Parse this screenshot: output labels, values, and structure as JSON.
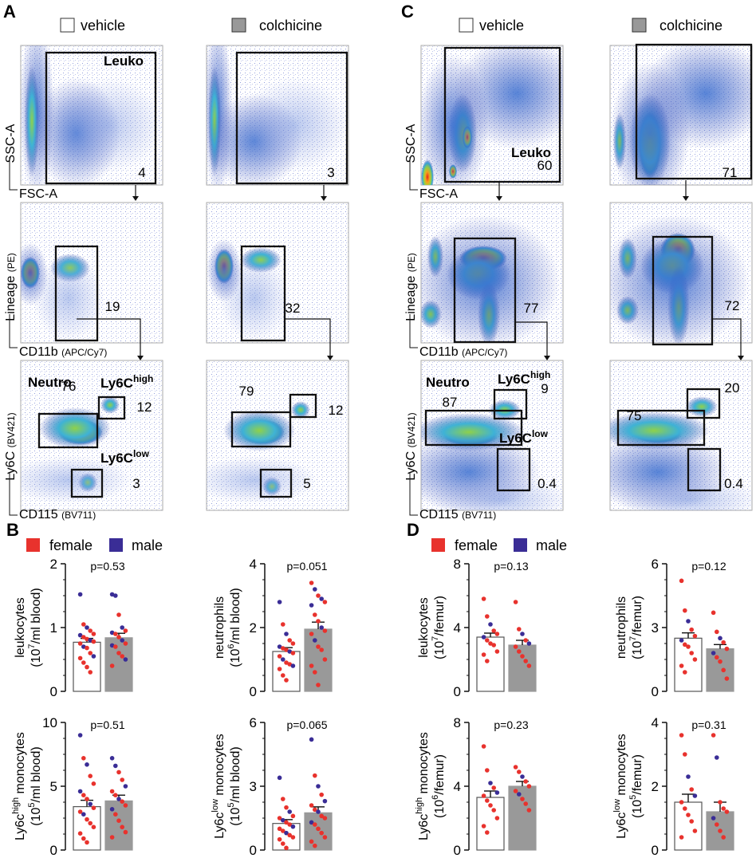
{
  "panels": {
    "A": "A",
    "B": "B",
    "C": "C",
    "D": "D"
  },
  "legend_top": {
    "vehicle": "vehicle",
    "colchicine": "colchicine",
    "colors": {
      "vehicle": "#ffffff",
      "colchicine": "#999999"
    }
  },
  "legend_bottom": {
    "female": "female",
    "male": "male",
    "colors": {
      "female": "#e8322d",
      "male": "#3a2d96"
    }
  },
  "flow": {
    "axes": {
      "ssc": "SSC-A",
      "fsc": "FSC-A",
      "lineage": "Lineage",
      "lineage_sub": "(PE)",
      "cd11b": "CD11b",
      "cd11b_sub": "(APC/Cy7)",
      "ly6c": "Ly6C",
      "ly6c_sub": "(BV421)",
      "cd115": "CD115",
      "cd115_sub": "(BV711)"
    },
    "gates": {
      "leuko": "Leuko",
      "neutro": "Neutro",
      "ly6c_high_base": "Ly6C",
      "high": "high",
      "ly6c_low_base": "Ly6C",
      "low": "low"
    },
    "A_vehicle": {
      "leuko": "4",
      "cd11b": "19",
      "neutro": "76",
      "ly6chigh": "12",
      "ly6clow": "3"
    },
    "A_colchicine": {
      "leuko": "3",
      "cd11b": "32",
      "neutro": "79",
      "ly6chigh": "12",
      "ly6clow": "5"
    },
    "C_vehicle": {
      "leuko": "60",
      "cd11b": "77",
      "neutro": "87",
      "ly6chigh": "9",
      "ly6clow": "0.4"
    },
    "C_colchicine": {
      "leuko": "71",
      "cd11b": "72",
      "neutro": "75",
      "ly6chigh": "20",
      "ly6clow": "0.4"
    }
  },
  "chart_data": [
    {
      "id": "B1",
      "type": "bar",
      "categories": [
        "vehicle",
        "colchicine"
      ],
      "values": [
        0.77,
        0.84
      ],
      "sem": [
        0.06,
        0.07
      ],
      "ylim": [
        0,
        2
      ],
      "yticks": [
        "0",
        "1",
        "2"
      ],
      "ylabel": "leukocytes",
      "ylabel_line2": "(10",
      "ylabel_exp": "7",
      "ylabel_tail": "/ml blood)",
      "p": "p=0.53",
      "points": [
        [
          [
            1.52,
            "m"
          ],
          [
            1.05,
            "r"
          ],
          [
            1.0,
            "m"
          ],
          [
            0.95,
            "r"
          ],
          [
            0.9,
            "r"
          ],
          [
            0.88,
            "m"
          ],
          [
            0.85,
            "r"
          ],
          [
            0.82,
            "r"
          ],
          [
            0.8,
            "m"
          ],
          [
            0.78,
            "r"
          ],
          [
            0.75,
            "r"
          ],
          [
            0.7,
            "m"
          ],
          [
            0.68,
            "r"
          ],
          [
            0.6,
            "r"
          ],
          [
            0.55,
            "m"
          ],
          [
            0.52,
            "r"
          ],
          [
            0.45,
            "r"
          ],
          [
            0.38,
            "r"
          ],
          [
            0.3,
            "r"
          ]
        ],
        [
          [
            1.52,
            "m"
          ],
          [
            1.5,
            "m"
          ],
          [
            1.2,
            "r"
          ],
          [
            1.0,
            "m"
          ],
          [
            0.95,
            "r"
          ],
          [
            0.92,
            "m"
          ],
          [
            0.9,
            "r"
          ],
          [
            0.85,
            "r"
          ],
          [
            0.8,
            "m"
          ],
          [
            0.75,
            "r"
          ],
          [
            0.72,
            "m"
          ],
          [
            0.7,
            "r"
          ],
          [
            0.6,
            "r"
          ],
          [
            0.55,
            "r"
          ],
          [
            0.5,
            "m"
          ],
          [
            0.4,
            "r"
          ]
        ]
      ]
    },
    {
      "id": "B2",
      "type": "bar",
      "categories": [
        "vehicle",
        "colchicine"
      ],
      "values": [
        1.25,
        1.95
      ],
      "sem": [
        0.12,
        0.22
      ],
      "ylim": [
        0,
        4
      ],
      "yticks": [
        "0",
        "2",
        "4"
      ],
      "ylabel": "neutrophils",
      "ylabel_line2": "(10",
      "ylabel_exp": "6",
      "ylabel_tail": "/ml blood)",
      "p": "p=0.051",
      "points": [
        [
          [
            2.8,
            "m"
          ],
          [
            2.1,
            "r"
          ],
          [
            1.8,
            "m"
          ],
          [
            1.6,
            "r"
          ],
          [
            1.5,
            "r"
          ],
          [
            1.4,
            "m"
          ],
          [
            1.35,
            "r"
          ],
          [
            1.3,
            "r"
          ],
          [
            1.25,
            "m"
          ],
          [
            1.2,
            "r"
          ],
          [
            1.1,
            "r"
          ],
          [
            1.0,
            "m"
          ],
          [
            0.9,
            "r"
          ],
          [
            0.85,
            "r"
          ],
          [
            0.8,
            "m"
          ],
          [
            0.7,
            "r"
          ],
          [
            0.5,
            "r"
          ],
          [
            0.35,
            "r"
          ]
        ],
        [
          [
            3.4,
            "r"
          ],
          [
            3.2,
            "m"
          ],
          [
            3.0,
            "r"
          ],
          [
            2.9,
            "m"
          ],
          [
            2.8,
            "r"
          ],
          [
            2.7,
            "m"
          ],
          [
            2.4,
            "r"
          ],
          [
            2.2,
            "r"
          ],
          [
            2.0,
            "m"
          ],
          [
            1.9,
            "r"
          ],
          [
            1.8,
            "r"
          ],
          [
            1.6,
            "m"
          ],
          [
            1.4,
            "r"
          ],
          [
            1.3,
            "r"
          ],
          [
            1.0,
            "r"
          ],
          [
            0.8,
            "r"
          ],
          [
            0.6,
            "r"
          ],
          [
            0.2,
            "r"
          ]
        ]
      ]
    },
    {
      "id": "B3",
      "type": "bar",
      "categories": [
        "vehicle",
        "colchicine"
      ],
      "values": [
        3.4,
        3.85
      ],
      "sem": [
        0.5,
        0.45
      ],
      "ylim": [
        0,
        10
      ],
      "yticks": [
        "0",
        "5",
        "10"
      ],
      "ylabel": "Ly6c",
      "ylabel_sup": "high",
      "ylabel_after": " monocytes",
      "ylabel_line2": "(10",
      "ylabel_exp": "5",
      "ylabel_tail": "/ml blood)",
      "p": "p=0.51",
      "points": [
        [
          [
            9.0,
            "m"
          ],
          [
            7.2,
            "r"
          ],
          [
            6.7,
            "m"
          ],
          [
            5.8,
            "r"
          ],
          [
            5.2,
            "r"
          ],
          [
            4.6,
            "m"
          ],
          [
            4.3,
            "r"
          ],
          [
            4.0,
            "r"
          ],
          [
            3.6,
            "m"
          ],
          [
            3.3,
            "r"
          ],
          [
            3.0,
            "r"
          ],
          [
            2.8,
            "m"
          ],
          [
            2.4,
            "r"
          ],
          [
            2.1,
            "r"
          ],
          [
            1.8,
            "r"
          ],
          [
            1.3,
            "r"
          ],
          [
            0.9,
            "r"
          ],
          [
            0.6,
            "r"
          ]
        ],
        [
          [
            7.2,
            "m"
          ],
          [
            6.6,
            "m"
          ],
          [
            6.1,
            "r"
          ],
          [
            5.5,
            "r"
          ],
          [
            5.0,
            "m"
          ],
          [
            4.6,
            "r"
          ],
          [
            4.3,
            "r"
          ],
          [
            4.0,
            "m"
          ],
          [
            3.8,
            "r"
          ],
          [
            3.5,
            "r"
          ],
          [
            3.2,
            "m"
          ],
          [
            2.8,
            "r"
          ],
          [
            2.3,
            "r"
          ],
          [
            1.8,
            "r"
          ],
          [
            1.4,
            "r"
          ],
          [
            1.0,
            "r"
          ]
        ]
      ]
    },
    {
      "id": "B4",
      "type": "bar",
      "categories": [
        "vehicle",
        "colchicine"
      ],
      "values": [
        1.25,
        1.75
      ],
      "sem": [
        0.18,
        0.28
      ],
      "ylim": [
        0,
        6
      ],
      "yticks": [
        "0",
        "3",
        "6"
      ],
      "ylabel": "Ly6c",
      "ylabel_sup": "low",
      "ylabel_after": " monocytes",
      "ylabel_line2": "(10",
      "ylabel_exp": "5",
      "ylabel_tail": "/ml blood)",
      "p": "p=0.065",
      "points": [
        [
          [
            3.4,
            "m"
          ],
          [
            2.4,
            "r"
          ],
          [
            2.0,
            "r"
          ],
          [
            1.8,
            "m"
          ],
          [
            1.6,
            "r"
          ],
          [
            1.5,
            "r"
          ],
          [
            1.4,
            "m"
          ],
          [
            1.3,
            "r"
          ],
          [
            1.2,
            "r"
          ],
          [
            1.1,
            "m"
          ],
          [
            1.0,
            "r"
          ],
          [
            0.9,
            "r"
          ],
          [
            0.8,
            "m"
          ],
          [
            0.7,
            "r"
          ],
          [
            0.6,
            "r"
          ],
          [
            0.5,
            "r"
          ],
          [
            0.3,
            "r"
          ],
          [
            0.1,
            "r"
          ]
        ],
        [
          [
            5.2,
            "m"
          ],
          [
            3.5,
            "r"
          ],
          [
            3.0,
            "m"
          ],
          [
            2.6,
            "r"
          ],
          [
            2.3,
            "m"
          ],
          [
            2.1,
            "r"
          ],
          [
            1.9,
            "r"
          ],
          [
            1.8,
            "m"
          ],
          [
            1.6,
            "r"
          ],
          [
            1.5,
            "r"
          ],
          [
            1.3,
            "m"
          ],
          [
            1.2,
            "r"
          ],
          [
            1.0,
            "r"
          ],
          [
            0.8,
            "r"
          ],
          [
            0.6,
            "r"
          ],
          [
            0.4,
            "r"
          ],
          [
            0.2,
            "r"
          ]
        ]
      ]
    },
    {
      "id": "D1",
      "type": "bar",
      "categories": [
        "vehicle",
        "colchicine"
      ],
      "values": [
        3.4,
        2.9
      ],
      "sem": [
        0.25,
        0.3
      ],
      "ylim": [
        0,
        8
      ],
      "yticks": [
        "0",
        "4",
        "8"
      ],
      "ylabel": "leukocytes",
      "ylabel_line2": "(10",
      "ylabel_exp": "7",
      "ylabel_tail": "/femur)",
      "p": "p=0.13",
      "points": [
        [
          [
            5.8,
            "r"
          ],
          [
            4.7,
            "r"
          ],
          [
            4.2,
            "m"
          ],
          [
            3.8,
            "r"
          ],
          [
            3.6,
            "r"
          ],
          [
            3.4,
            "m"
          ],
          [
            3.2,
            "r"
          ],
          [
            3.0,
            "r"
          ],
          [
            2.9,
            "r"
          ],
          [
            2.5,
            "r"
          ],
          [
            2.3,
            "r"
          ],
          [
            1.9,
            "r"
          ]
        ],
        [
          [
            5.6,
            "r"
          ],
          [
            3.9,
            "r"
          ],
          [
            3.6,
            "m"
          ],
          [
            3.2,
            "r"
          ],
          [
            3.0,
            "m"
          ],
          [
            2.8,
            "r"
          ],
          [
            2.5,
            "r"
          ],
          [
            2.2,
            "r"
          ],
          [
            1.9,
            "r"
          ],
          [
            1.6,
            "r"
          ]
        ]
      ]
    },
    {
      "id": "D2",
      "type": "bar",
      "categories": [
        "vehicle",
        "colchicine"
      ],
      "values": [
        2.5,
        2.0
      ],
      "sem": [
        0.25,
        0.2
      ],
      "ylim": [
        0,
        6
      ],
      "yticks": [
        "0",
        "3",
        "6"
      ],
      "ylabel": "neutrophils",
      "ylabel_line2": "(10",
      "ylabel_exp": "7",
      "ylabel_tail": "/femur)",
      "p": "p=0.12",
      "points": [
        [
          [
            5.2,
            "r"
          ],
          [
            3.8,
            "r"
          ],
          [
            3.3,
            "m"
          ],
          [
            2.9,
            "r"
          ],
          [
            2.6,
            "r"
          ],
          [
            2.4,
            "m"
          ],
          [
            2.2,
            "r"
          ],
          [
            2.1,
            "r"
          ],
          [
            1.8,
            "r"
          ],
          [
            1.5,
            "r"
          ],
          [
            1.2,
            "r"
          ],
          [
            0.9,
            "r"
          ]
        ],
        [
          [
            3.7,
            "r"
          ],
          [
            2.8,
            "r"
          ],
          [
            2.5,
            "m"
          ],
          [
            2.3,
            "r"
          ],
          [
            2.0,
            "r"
          ],
          [
            1.8,
            "m"
          ],
          [
            1.6,
            "r"
          ],
          [
            1.4,
            "r"
          ],
          [
            1.0,
            "r"
          ],
          [
            0.6,
            "r"
          ]
        ]
      ]
    },
    {
      "id": "D3",
      "type": "bar",
      "categories": [
        "vehicle",
        "colchicine"
      ],
      "values": [
        3.3,
        4.0
      ],
      "sem": [
        0.4,
        0.3
      ],
      "ylim": [
        0,
        8
      ],
      "yticks": [
        "0",
        "4",
        "8"
      ],
      "ylabel": "Ly6c",
      "ylabel_sup": "high",
      "ylabel_after": " monocytes",
      "ylabel_line2": "(10",
      "ylabel_exp": "6",
      "ylabel_tail": "/femur)",
      "p": "p=0.23",
      "points": [
        [
          [
            6.5,
            "r"
          ],
          [
            5.0,
            "r"
          ],
          [
            4.2,
            "m"
          ],
          [
            3.9,
            "r"
          ],
          [
            3.6,
            "m"
          ],
          [
            3.4,
            "r"
          ],
          [
            3.1,
            "r"
          ],
          [
            2.8,
            "r"
          ],
          [
            2.5,
            "r"
          ],
          [
            2.0,
            "r"
          ],
          [
            1.5,
            "r"
          ],
          [
            1.1,
            "r"
          ]
        ],
        [
          [
            5.2,
            "r"
          ],
          [
            4.9,
            "r"
          ],
          [
            4.6,
            "m"
          ],
          [
            4.3,
            "r"
          ],
          [
            4.0,
            "r"
          ],
          [
            3.7,
            "r"
          ],
          [
            3.5,
            "m"
          ],
          [
            3.2,
            "r"
          ],
          [
            2.9,
            "r"
          ],
          [
            2.5,
            "r"
          ]
        ]
      ]
    },
    {
      "id": "D4",
      "type": "bar",
      "categories": [
        "vehicle",
        "colchicine"
      ],
      "values": [
        1.5,
        1.2
      ],
      "sem": [
        0.25,
        0.3
      ],
      "ylim": [
        0,
        4
      ],
      "yticks": [
        "0",
        "2",
        "4"
      ],
      "ylabel": "Ly6c",
      "ylabel_sup": "low",
      "ylabel_after": " monocytes",
      "ylabel_line2": "(10",
      "ylabel_exp": "5",
      "ylabel_tail": "/femur)",
      "p": "p=0.31",
      "points": [
        [
          [
            3.6,
            "r"
          ],
          [
            3.0,
            "r"
          ],
          [
            2.3,
            "m"
          ],
          [
            1.9,
            "r"
          ],
          [
            1.7,
            "m"
          ],
          [
            1.5,
            "r"
          ],
          [
            1.3,
            "r"
          ],
          [
            1.1,
            "r"
          ],
          [
            0.9,
            "r"
          ],
          [
            0.6,
            "r"
          ],
          [
            0.4,
            "r"
          ]
        ],
        [
          [
            3.6,
            "r"
          ],
          [
            2.9,
            "m"
          ],
          [
            1.5,
            "r"
          ],
          [
            1.3,
            "r"
          ],
          [
            1.2,
            "r"
          ],
          [
            1.0,
            "m"
          ],
          [
            0.8,
            "r"
          ],
          [
            0.6,
            "r"
          ],
          [
            0.4,
            "r"
          ]
        ]
      ]
    }
  ]
}
